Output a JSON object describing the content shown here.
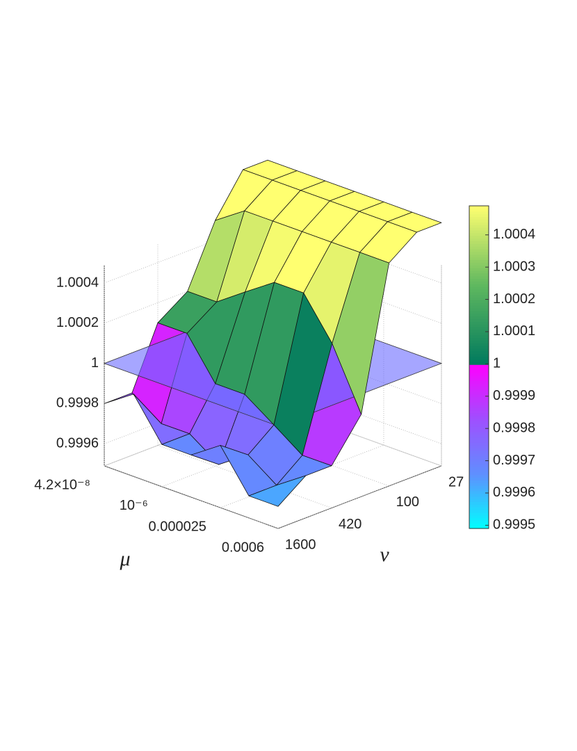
{
  "chart_data": {
    "type": "surface3d",
    "x_label": "μ",
    "y_label": "ν",
    "x": [
      4.2e-08,
      2.1e-07,
      1e-06,
      5e-06,
      2.5e-05,
      0.00012,
      0.0006
    ],
    "y": [
      27,
      50,
      100,
      200,
      420,
      800,
      1600
    ],
    "z": [
      [
        1.0007,
        1.0007,
        1.0007,
        1.0007,
        1.0007,
        1.0007,
        1.0007
      ],
      [
        1.0007,
        1.0007,
        1.0007,
        1.0007,
        1.0007,
        1.0007,
        1.0007
      ],
      [
        1.0005,
        1.0006,
        1.0006,
        1.0006,
        1.0006,
        1.0006,
        1.0006
      ],
      [
        1.0002,
        1.0002,
        1.0003,
        1.0004,
        1.0004,
        1.0002,
        0.9999
      ],
      [
        1.0001,
        1.0001,
        0.9999,
        0.9999,
        0.9998,
        0.9997,
        0.9997
      ],
      [
        0.9998,
        0.9997,
        0.9997,
        0.9996,
        0.9997,
        0.9996,
        0.9997
      ],
      [
        0.9998,
        0.9999,
        0.9997,
        0.9997,
        0.9998,
        0.9996,
        0.9996
      ]
    ],
    "xscale": "log",
    "yscale": "log",
    "xlim": [
      4.2e-08,
      0.0006
    ],
    "ylim": [
      1600,
      27
    ],
    "zlim": [
      0.99949,
      1.00049
    ],
    "xticks": [
      {
        "value": 4.2e-08,
        "label": "4.2×10⁻⁸"
      },
      {
        "value": 1e-06,
        "label": "10⁻⁶"
      },
      2.5e-05,
      0.0006
    ],
    "yticks": [
      1600,
      420,
      100,
      27
    ],
    "zticks": [
      0.9996,
      0.9998,
      1,
      1.0002,
      1.0004
    ],
    "grid": true,
    "reference_plane": {
      "value": 1,
      "color": "#6b6bff"
    },
    "colorbar": {
      "clim": [
        0.99949,
        1.00049
      ],
      "ticks": [
        0.9995,
        0.9996,
        0.9997,
        0.9998,
        0.9999,
        1,
        1.0001,
        1.0002,
        1.0003,
        1.0004
      ],
      "below_colors": [
        "#00ffff",
        "#5f8fff",
        "#9f4fff",
        "#ff00ff"
      ],
      "above_colors": [
        "#007a5e",
        "#5fb85f",
        "#ffff70"
      ]
    }
  }
}
